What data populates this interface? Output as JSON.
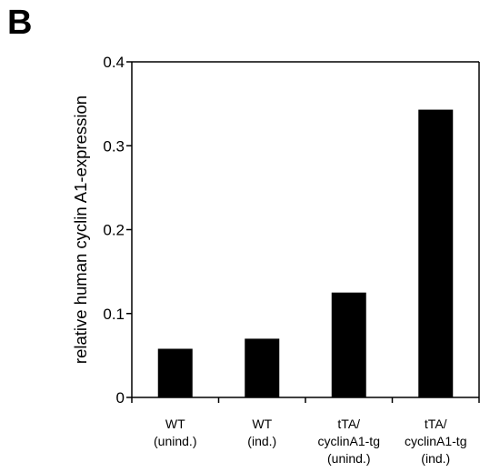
{
  "panel_label": "B",
  "chart_data": {
    "type": "bar",
    "title": "",
    "xlabel": "",
    "ylabel": "relative human cyclin A1-expression",
    "ylim": [
      0,
      0.4
    ],
    "yticks": [
      "0",
      "0.1",
      "0.2",
      "0.3",
      "0.4"
    ],
    "grid": false,
    "bar_color": "#000000",
    "categories": [
      [
        "WT",
        "(unind.)"
      ],
      [
        "WT",
        "(ind.)"
      ],
      [
        "tTA/",
        "cyclinA1-tg",
        "(unind.)"
      ],
      [
        "tTA/",
        "cyclinA1-tg",
        "(ind.)"
      ]
    ],
    "values": [
      0.058,
      0.07,
      0.125,
      0.343
    ]
  }
}
